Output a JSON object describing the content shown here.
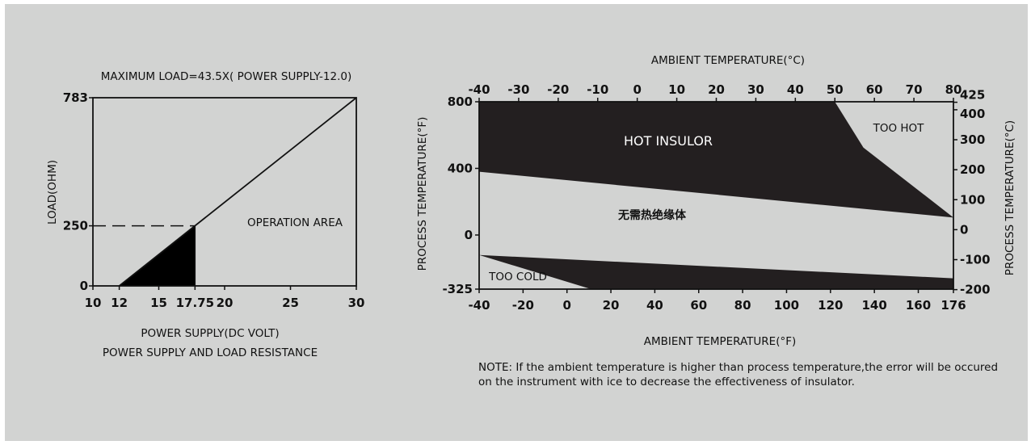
{
  "chart_data": [
    {
      "type": "line",
      "title": "MAXIMUM LOAD=43.5X( POWER SUPPLY-12.0)",
      "caption": "POWER SUPPLY AND LOAD RESISTANCE",
      "xlabel": "POWER SUPPLY(DC VOLT)",
      "ylabel": "LOAD(OHM)",
      "xlim": [
        10,
        30
      ],
      "ylim": [
        0,
        783
      ],
      "x_ticks": [
        10,
        12,
        15,
        17.75,
        20,
        25,
        30
      ],
      "x_tick_labels": [
        "10",
        "12",
        "15",
        "17.75",
        "20",
        "25",
        "30"
      ],
      "y_ticks": [
        0,
        250,
        783
      ],
      "y_tick_labels": [
        "0",
        "250",
        "783"
      ],
      "series": [
        {
          "x": [
            12,
            30
          ],
          "y": [
            0,
            783
          ]
        }
      ],
      "reference_point": {
        "x": 17.75,
        "y": 250
      },
      "shaded_region": {
        "x": [
          12,
          17.75,
          17.75
        ],
        "y": [
          0,
          0,
          250
        ],
        "color": "#000000"
      },
      "annotations": [
        {
          "text": "OPERATION AREA"
        }
      ]
    },
    {
      "type": "area",
      "xlabel_bottom": "AMBIENT TEMPERATURE(°F)",
      "xlabel_top": "AMBIENT TEMPERATURE(°C)",
      "ylabel_left": "PROCESS TEMPERATURE(°F)",
      "ylabel_right": "PROCESS TEMPERATURE(°C)",
      "xlim": [
        -40,
        176
      ],
      "ylim": [
        -325,
        800
      ],
      "x_ticks_bottom": [
        "-40",
        "-20",
        "0",
        "20",
        "40",
        "60",
        "80",
        "100",
        "120",
        "140",
        "160",
        "176"
      ],
      "x_ticks_top": [
        "-40",
        "-30",
        "-20",
        "-10",
        "0",
        "10",
        "20",
        "30",
        "40",
        "50",
        "60",
        "70",
        "80"
      ],
      "y_ticks_left": [
        "800",
        "400",
        "0",
        "-325"
      ],
      "y_ticks_right": [
        "425",
        "400",
        "300",
        "200",
        "100",
        "0",
        "-100",
        "-200"
      ],
      "regions": [
        {
          "label": "HOT INSULOR",
          "points": [
            [
              -40,
              800
            ],
            [
              122,
              800
            ],
            [
              135,
              525
            ],
            [
              176,
              105
            ],
            [
              -40,
              380
            ]
          ],
          "color": "#231f20"
        },
        {
          "label": "TOO COLD",
          "points": [
            [
              -40,
              -120
            ],
            [
              176,
              -260
            ],
            [
              176,
              -325
            ],
            [
              11,
              -325
            ]
          ],
          "color": "#231f20"
        }
      ],
      "annotations": [
        "HOT INSULOR",
        "TOO HOT",
        "无需热绝缘体",
        "TOO COLD"
      ],
      "note": "NOTE: If the ambient temperature is higher than process temperature,the error will be occured on the instrument with ice to decrease the effectiveness of insulator."
    }
  ]
}
